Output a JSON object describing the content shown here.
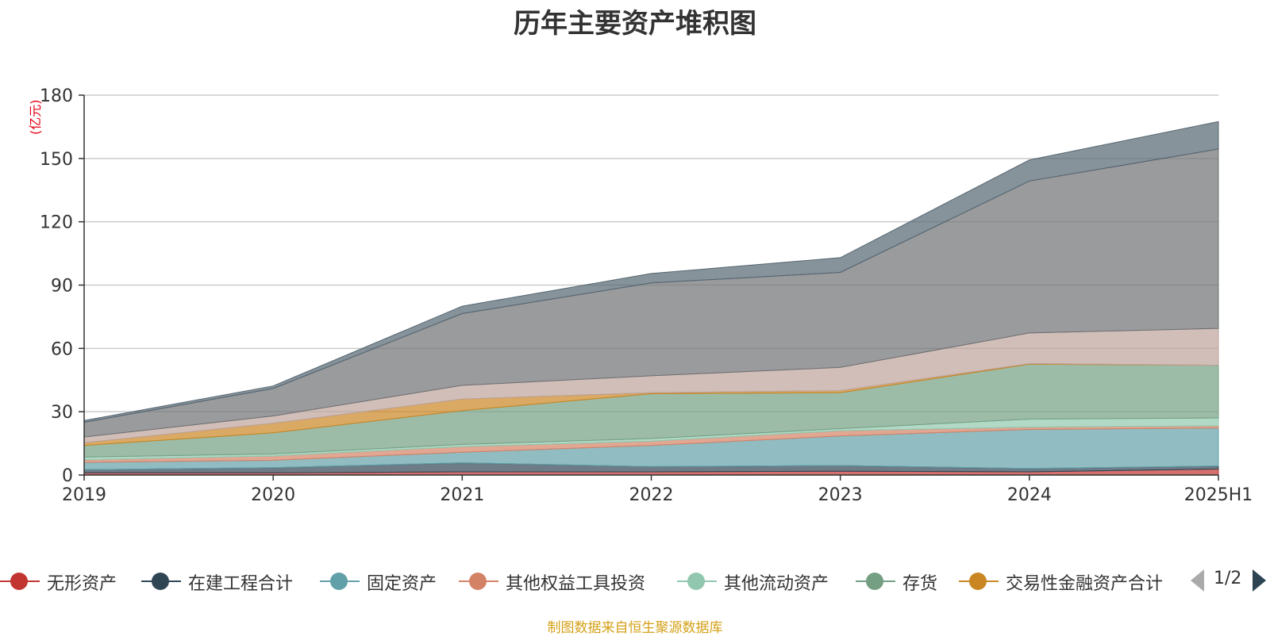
{
  "title": "历年主要资产堆积图",
  "unit_label": "(亿元)",
  "source_note": "制图数据来自恒生聚源数据库",
  "legend_page": "1/2",
  "legend": [
    {
      "label": "无形资产",
      "color": "#c23531"
    },
    {
      "label": "在建工程合计",
      "color": "#2f4554"
    },
    {
      "label": "固定资产",
      "color": "#61a0a8"
    },
    {
      "label": "其他权益工具投资",
      "color": "#d48265"
    },
    {
      "label": "其他流动资产",
      "color": "#91c7ae"
    },
    {
      "label": "存货",
      "color": "#749f83"
    },
    {
      "label": "交易性金融资产合计",
      "color": "#ca8622"
    }
  ],
  "chart_data": {
    "type": "area",
    "stacked": true,
    "title": "历年主要资产堆积图",
    "ylabel": "(亿元)",
    "ylim": [
      0,
      180
    ],
    "yticks": [
      0,
      30,
      60,
      90,
      120,
      150,
      180
    ],
    "grid": true,
    "legend_position": "bottom",
    "categories": [
      "2019",
      "2020",
      "2021",
      "2022",
      "2023",
      "2024",
      "2025H1"
    ],
    "series": [
      {
        "name": "无形资产",
        "color": "#c23531",
        "values": [
          1.0,
          1.0,
          1.5,
          1.5,
          1.8,
          1.5,
          2.8
        ]
      },
      {
        "name": "在建工程合计",
        "color": "#2f4554",
        "values": [
          1.5,
          2.5,
          4.3,
          2.5,
          2.7,
          1.6,
          1.5
        ]
      },
      {
        "name": "固定资产",
        "color": "#61a0a8",
        "values": [
          3.5,
          3.5,
          5.0,
          10.0,
          14.0,
          18.5,
          18.0
        ]
      },
      {
        "name": "其他权益工具投资",
        "color": "#d48265",
        "values": [
          1.2,
          2.0,
          2.7,
          2.0,
          2.5,
          1.1,
          1.0
        ]
      },
      {
        "name": "其他流动资产",
        "color": "#91c7ae",
        "values": [
          1.3,
          1.0,
          1.0,
          1.3,
          1.0,
          3.8,
          3.7
        ]
      },
      {
        "name": "存货",
        "color": "#749f83",
        "values": [
          5.5,
          10.0,
          16.0,
          21.2,
          17.0,
          26.0,
          25.0
        ]
      },
      {
        "name": "交易性金融资产合计",
        "color": "#ca8622",
        "values": [
          1.3,
          4.5,
          5.5,
          0.5,
          1.0,
          0.3,
          0.0
        ]
      },
      {
        "color": "#bda29a",
        "values": [
          2.7,
          3.5,
          6.5,
          8.0,
          11.0,
          14.5,
          17.5
        ]
      },
      {
        "color": "#6e7074",
        "values": [
          7.0,
          13.0,
          34.0,
          44.0,
          45.0,
          72.0,
          85.0
        ]
      },
      {
        "color": "#546570",
        "values": [
          0.8,
          1.2,
          3.5,
          4.5,
          7.0,
          10.0,
          13.0
        ]
      }
    ]
  }
}
